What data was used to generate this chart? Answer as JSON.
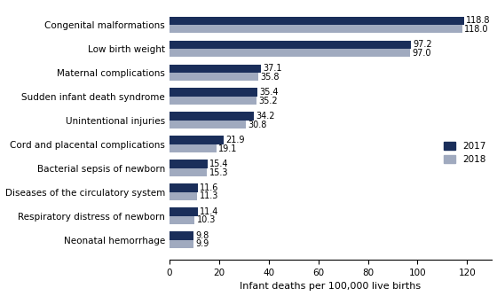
{
  "categories": [
    "Congenital malformations",
    "Low birth weight",
    "Maternal complications",
    "Sudden infant death syndrome",
    "Unintentional injuries",
    "Cord and placental complications",
    "Bacterial sepsis of newborn",
    "Diseases of the circulatory system",
    "Respiratory distress of newborn",
    "Neonatal hemorrhage"
  ],
  "values_2017": [
    118.8,
    97.2,
    37.1,
    35.4,
    34.2,
    21.9,
    15.4,
    11.6,
    11.4,
    9.8
  ],
  "values_2018": [
    118.0,
    97.0,
    35.8,
    35.2,
    30.8,
    19.1,
    15.3,
    11.3,
    10.3,
    9.9
  ],
  "color_2017": "#1a2e5a",
  "color_2018": "#a0aabf",
  "xlabel": "Infant deaths per 100,000 live births",
  "xlim": [
    0,
    130
  ],
  "xticks": [
    0,
    20,
    40,
    60,
    80,
    100,
    120
  ],
  "legend_2017": "2017",
  "legend_2018": "2018",
  "bar_height": 0.35,
  "label_fontsize": 7.0,
  "tick_fontsize": 7.5,
  "xlabel_fontsize": 8.0
}
